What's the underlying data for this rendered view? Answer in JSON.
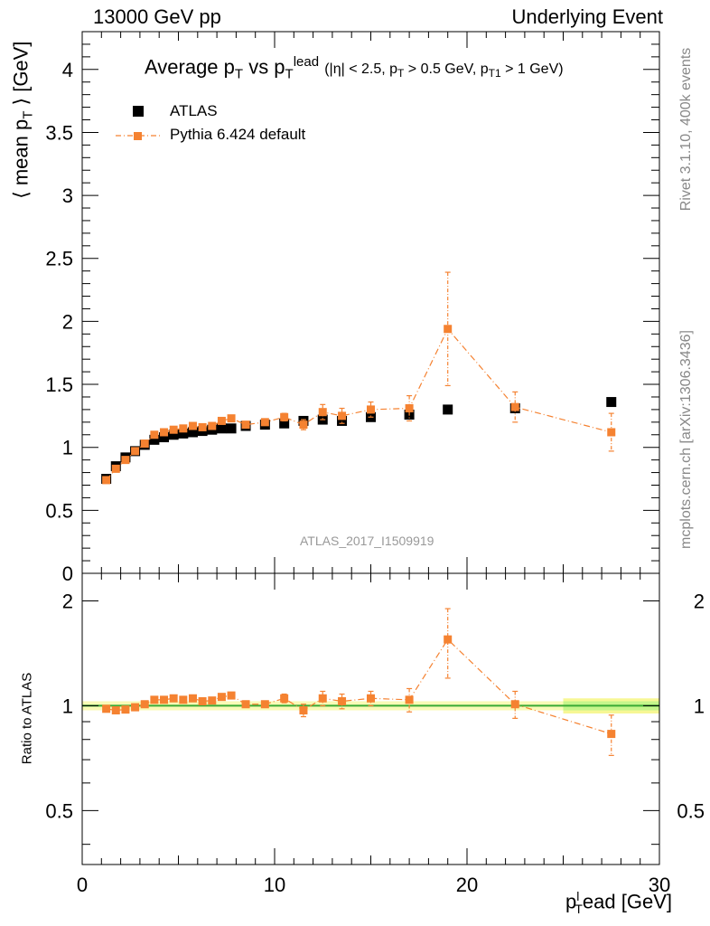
{
  "header": {
    "left": "13000 GeV pp",
    "right": "Underlying Event"
  },
  "side": {
    "rivet": "Rivet 3.1.10,  400k events",
    "mcplots": "mcplots.cern.ch [arXiv:1306.3436]"
  },
  "chart_data": [
    {
      "type": "scatter",
      "panel": "main",
      "title": "Average pT vs pTlead (|η| < 2.5, pT > 0.5 GeV, pT1 > 1 GeV)",
      "title_parts": {
        "main": "Average p",
        "main_sub": "T",
        "vs": " vs p",
        "vs_sub": "T",
        "vs_sup": "lead",
        "cuts": "(|η| < 2.5, p",
        "c1_sub": "T",
        "c1": " > 0.5 GeV, p",
        "c2_sub": "T1",
        "c2": " > 1 GeV)"
      },
      "ylabel": "⟨ mean pT ⟩ [GeV]",
      "ylabel_parts": {
        "pre": "⟨ mean p",
        "sub": "T",
        "post": " ⟩ [GeV]"
      },
      "watermark": "ATLAS_2017_I1509919",
      "xlim": [
        0,
        30
      ],
      "ylim": [
        0,
        4.3
      ],
      "yticks": [
        "0",
        "0.5",
        "1",
        "1.5",
        "2",
        "2.5",
        "3",
        "3.5",
        "4"
      ],
      "legend_position": "top-left",
      "series": [
        {
          "name": "ATLAS",
          "color": "#000000",
          "marker": "square",
          "x": [
            1.25,
            1.75,
            2.25,
            2.75,
            3.25,
            3.75,
            4.25,
            4.75,
            5.25,
            5.75,
            6.25,
            6.75,
            7.25,
            7.75,
            8.5,
            9.5,
            10.5,
            11.5,
            12.5,
            13.5,
            15,
            17,
            19,
            22.5,
            27.5
          ],
          "y": [
            0.75,
            0.85,
            0.92,
            0.97,
            1.02,
            1.06,
            1.08,
            1.1,
            1.11,
            1.12,
            1.13,
            1.14,
            1.15,
            1.15,
            1.17,
            1.18,
            1.19,
            1.21,
            1.22,
            1.21,
            1.24,
            1.26,
            1.3,
            1.31,
            1.36
          ]
        },
        {
          "name": "Pythia 6.424 default",
          "color": "#f58231",
          "marker": "square",
          "line": "dash-dot",
          "x": [
            1.25,
            1.75,
            2.25,
            2.75,
            3.25,
            3.75,
            4.25,
            4.75,
            5.25,
            5.75,
            6.25,
            6.75,
            7.25,
            7.75,
            8.5,
            9.5,
            10.5,
            11.5,
            12.5,
            13.5,
            15,
            17,
            19,
            22.5,
            27.5
          ],
          "y": [
            0.74,
            0.83,
            0.9,
            0.97,
            1.03,
            1.1,
            1.12,
            1.14,
            1.15,
            1.17,
            1.16,
            1.17,
            1.21,
            1.23,
            1.18,
            1.2,
            1.24,
            1.18,
            1.28,
            1.25,
            1.3,
            1.31,
            1.94,
            1.32,
            1.12
          ],
          "yerr": [
            0.01,
            0.01,
            0.01,
            0.01,
            0.01,
            0.01,
            0.01,
            0.01,
            0.01,
            0.01,
            0.01,
            0.01,
            0.01,
            0.01,
            0.02,
            0.02,
            0.03,
            0.04,
            0.06,
            0.06,
            0.06,
            0.1,
            0.45,
            0.12,
            0.15
          ]
        }
      ]
    },
    {
      "type": "scatter",
      "panel": "ratio",
      "ylabel": "Ratio to ATLAS",
      "xlabel": "pTlead [GeV]",
      "xlabel_parts": {
        "p": "p",
        "sub": "T",
        "sup": "l",
        "post": "ead [GeV]"
      },
      "xlim": [
        0,
        30
      ],
      "ylim": [
        0.35,
        2.4
      ],
      "log_y": true,
      "xticks": [
        "0",
        "10",
        "20",
        "30"
      ],
      "yticks": [
        "0.5",
        "1",
        "2"
      ],
      "series": [
        {
          "name": "Pythia 6.424 default",
          "color": "#f58231",
          "x": [
            1.25,
            1.75,
            2.25,
            2.75,
            3.25,
            3.75,
            4.25,
            4.75,
            5.25,
            5.75,
            6.25,
            6.75,
            7.25,
            7.75,
            8.5,
            9.5,
            10.5,
            11.5,
            12.5,
            13.5,
            15,
            17,
            19,
            22.5,
            27.5
          ],
          "y": [
            0.98,
            0.97,
            0.975,
            0.99,
            1.01,
            1.04,
            1.04,
            1.05,
            1.04,
            1.05,
            1.03,
            1.035,
            1.06,
            1.07,
            1.01,
            1.01,
            1.05,
            0.97,
            1.05,
            1.03,
            1.05,
            1.04,
            1.55,
            1.01,
            0.83
          ],
          "yerr": [
            0.01,
            0.01,
            0.01,
            0.01,
            0.01,
            0.01,
            0.01,
            0.01,
            0.01,
            0.01,
            0.01,
            0.01,
            0.01,
            0.01,
            0.02,
            0.02,
            0.03,
            0.04,
            0.05,
            0.05,
            0.05,
            0.08,
            0.35,
            0.09,
            0.11
          ]
        }
      ],
      "band_color": "#f5f57a",
      "band_inner_color": "#b9f58c",
      "reference_color": "#3aaa35"
    }
  ]
}
